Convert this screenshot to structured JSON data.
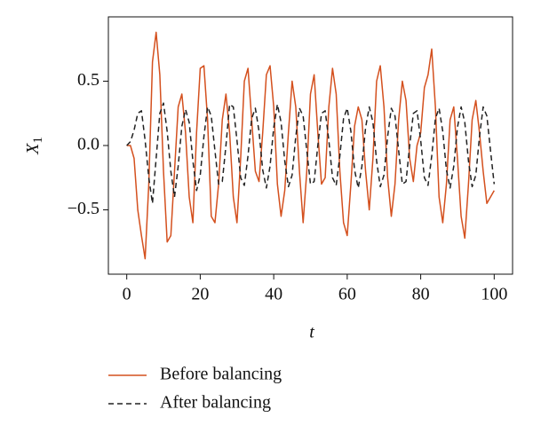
{
  "chart_data": {
    "type": "line",
    "xlabel": "t",
    "ylabel": "X",
    "ylabel_subscript": "1",
    "x": [
      0,
      1,
      2,
      3,
      4,
      5,
      6,
      7,
      8,
      9,
      10,
      11,
      12,
      13,
      14,
      15,
      16,
      17,
      18,
      19,
      20,
      21,
      22,
      23,
      24,
      25,
      26,
      27,
      28,
      29,
      30,
      31,
      32,
      33,
      34,
      35,
      36,
      37,
      38,
      39,
      40,
      41,
      42,
      43,
      44,
      45,
      46,
      47,
      48,
      49,
      50,
      51,
      52,
      53,
      54,
      55,
      56,
      57,
      58,
      59,
      60,
      61,
      62,
      63,
      64,
      65,
      66,
      67,
      68,
      69,
      70,
      71,
      72,
      73,
      74,
      75,
      76,
      77,
      78,
      79,
      80,
      81,
      82,
      83,
      84,
      85,
      86,
      87,
      88,
      89,
      90,
      91,
      92,
      93,
      94,
      95,
      96,
      97,
      98,
      99,
      100
    ],
    "series": [
      {
        "name": "Before balancing",
        "color": "#d4501e",
        "dash": false,
        "values": [
          0,
          0,
          -0.1,
          -0.5,
          -0.7,
          -0.88,
          -0.3,
          0.65,
          0.88,
          0.55,
          -0.2,
          -0.75,
          -0.7,
          -0.2,
          0.3,
          0.4,
          0.1,
          -0.4,
          -0.6,
          0.1,
          0.6,
          0.62,
          0.2,
          -0.55,
          -0.6,
          -0.3,
          0.2,
          0.4,
          0.1,
          -0.4,
          -0.6,
          -0.1,
          0.5,
          0.6,
          0.2,
          -0.2,
          -0.28,
          0.1,
          0.55,
          0.62,
          0.3,
          -0.3,
          -0.55,
          -0.35,
          0.1,
          0.5,
          0.3,
          -0.2,
          -0.6,
          -0.2,
          0.4,
          0.55,
          0.1,
          -0.3,
          -0.25,
          0.3,
          0.6,
          0.4,
          -0.2,
          -0.6,
          -0.7,
          -0.3,
          0.15,
          0.3,
          0.2,
          -0.2,
          -0.5,
          -0.1,
          0.5,
          0.62,
          0.3,
          -0.25,
          -0.55,
          -0.3,
          0.2,
          0.5,
          0.35,
          -0.1,
          -0.28,
          0,
          0.1,
          0.45,
          0.55,
          0.75,
          0.3,
          -0.4,
          -0.6,
          -0.3,
          0.2,
          0.3,
          -0.1,
          -0.55,
          -0.72,
          -0.3,
          0.2,
          0.35,
          0.1,
          -0.2,
          -0.45,
          -0.4,
          -0.35
        ]
      },
      {
        "name": "After balancing",
        "color": "#222222",
        "dash": true,
        "values": [
          0,
          0.03,
          0.12,
          0.25,
          0.27,
          0.04,
          -0.25,
          -0.45,
          -0.1,
          0.25,
          0.33,
          0.11,
          -0.2,
          -0.4,
          -0.16,
          0.15,
          0.28,
          0.18,
          -0.12,
          -0.35,
          -0.23,
          0.07,
          0.3,
          0.23,
          -0.04,
          -0.3,
          -0.28,
          0,
          0.32,
          0.3,
          0.04,
          -0.25,
          -0.31,
          -0.08,
          0.21,
          0.29,
          0.11,
          -0.19,
          -0.33,
          -0.16,
          0.14,
          0.32,
          0.18,
          -0.12,
          -0.32,
          -0.23,
          0.07,
          0.29,
          0.23,
          -0.04,
          -0.3,
          -0.28,
          0,
          0.25,
          0.27,
          0.04,
          -0.25,
          -0.31,
          -0.08,
          0.21,
          0.29,
          0.11,
          -0.19,
          -0.33,
          -0.16,
          0.14,
          0.3,
          0.18,
          -0.12,
          -0.32,
          -0.23,
          0.07,
          0.29,
          0.23,
          -0.04,
          -0.3,
          -0.28,
          0,
          0.25,
          0.27,
          0.04,
          -0.25,
          -0.31,
          -0.08,
          0.21,
          0.29,
          0.11,
          -0.19,
          -0.33,
          -0.16,
          0.14,
          0.3,
          0.18,
          -0.12,
          -0.32,
          -0.23,
          0.07,
          0.3,
          0.23,
          -0.04,
          -0.3
        ]
      }
    ],
    "xlim": [
      -5,
      105
    ],
    "ylim": [
      -1,
      1
    ],
    "xticks": [
      0,
      20,
      40,
      60,
      80,
      100
    ],
    "yticks": [
      {
        "value": -0.5,
        "label": "−0.5"
      },
      {
        "value": 0,
        "label": "0.0"
      },
      0.5
    ],
    "grid": false,
    "legend": "bottom"
  }
}
